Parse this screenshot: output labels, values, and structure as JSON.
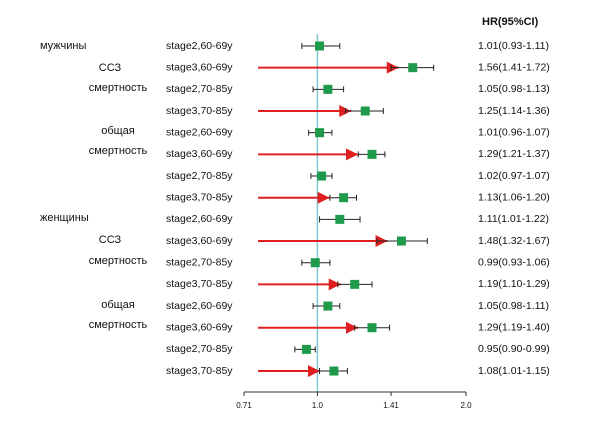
{
  "chart_data": {
    "type": "forest",
    "title": "HR(95%CI)",
    "annotations": [
      "мужчины",
      "ССЗ",
      "смертность",
      "общая",
      "смертность",
      "женщины",
      "ССЗ",
      "смертность",
      "общая",
      "смертность"
    ],
    "categories": [
      "stage2,60-69y",
      "stage3,60-69y",
      "stage2,70-85y",
      "stage3,70-85y",
      "stage2,60-69y",
      "stage3,60-69y",
      "stage2,70-85y",
      "stage3,70-85y",
      "stage2,60-69y",
      "stage3,60-69y",
      "stage2,70-85y",
      "stage3,70-85y",
      "stage2,60-69y",
      "stage3,60-69y",
      "stage2,70-85y",
      "stage3,70-85y"
    ],
    "series": [
      {
        "name": "HR",
        "color": "#1e9a4a",
        "values": [
          1.01,
          1.56,
          1.05,
          1.25,
          1.01,
          1.29,
          1.02,
          1.13,
          1.11,
          1.48,
          0.99,
          1.19,
          1.05,
          1.29,
          0.95,
          1.08
        ],
        "lower": [
          0.93,
          1.41,
          0.98,
          1.14,
          0.96,
          1.21,
          0.97,
          1.06,
          1.01,
          1.32,
          0.93,
          1.1,
          0.98,
          1.19,
          0.9,
          1.01
        ],
        "upper": [
          1.11,
          1.72,
          1.13,
          1.36,
          1.07,
          1.37,
          1.07,
          1.2,
          1.22,
          1.67,
          1.06,
          1.29,
          1.11,
          1.4,
          0.99,
          1.15
        ],
        "value_labels": [
          "1.01(0.93-1.11)",
          "1.56(1.41-1.72)",
          "1.05(0.98-1.13)",
          "1.25(1.14-1.36)",
          "1.01(0.96-1.07)",
          "1.29(1.21-1.37)",
          "1.02(0.97-1.07)",
          "1.13(1.06-1.20)",
          "1.11(1.01-1.22)",
          "1.48(1.32-1.67)",
          "0.99(0.93-1.06)",
          "1.19(1.10-1.29)",
          "1.05(0.98-1.11)",
          "1.29(1.19-1.40)",
          "0.95(0.90-0.99)",
          "1.08(1.01-1.15)"
        ]
      }
    ],
    "xlim": [
      0.71,
      2.0
    ],
    "log_x": true,
    "xticks": [
      0.71,
      {
        "value": 1,
        "label": "1.0"
      },
      1.41,
      {
        "value": 2,
        "label": "2.0"
      }
    ],
    "reference_line": 1,
    "reference_color": "#7ec8cf"
  }
}
